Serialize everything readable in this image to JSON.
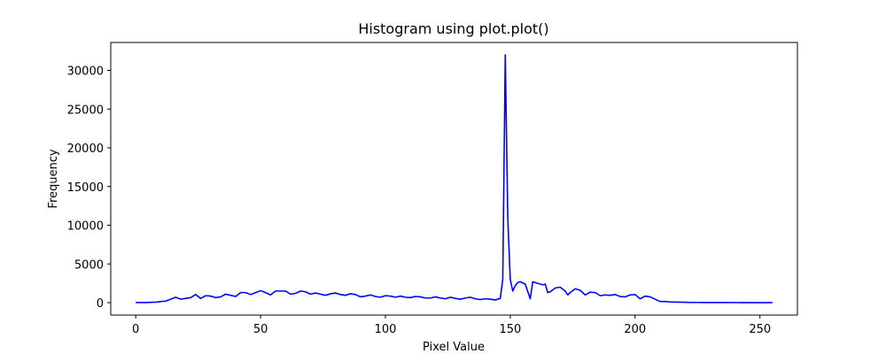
{
  "chart_data": {
    "type": "line",
    "title": "Histogram using plot.plot()",
    "xlabel": "Pixel Value",
    "ylabel": "Frequency",
    "xlim": [
      -10,
      265
    ],
    "ylim": [
      -1600,
      33600
    ],
    "xticks": [
      0,
      50,
      100,
      150,
      200,
      250
    ],
    "yticks": [
      0,
      5000,
      10000,
      15000,
      20000,
      25000,
      30000
    ],
    "grid": false,
    "line_color": "#0000ff",
    "series": [
      {
        "points": [
          [
            0,
            20
          ],
          [
            4,
            20
          ],
          [
            8,
            60
          ],
          [
            10,
            150
          ],
          [
            12,
            200
          ],
          [
            14,
            450
          ],
          [
            16,
            700
          ],
          [
            18,
            450
          ],
          [
            20,
            550
          ],
          [
            22,
            650
          ],
          [
            24,
            1050
          ],
          [
            26,
            550
          ],
          [
            28,
            900
          ],
          [
            30,
            850
          ],
          [
            32,
            650
          ],
          [
            34,
            750
          ],
          [
            36,
            1100
          ],
          [
            38,
            950
          ],
          [
            40,
            800
          ],
          [
            42,
            1300
          ],
          [
            44,
            1300
          ],
          [
            46,
            1050
          ],
          [
            48,
            1300
          ],
          [
            50,
            1550
          ],
          [
            52,
            1300
          ],
          [
            54,
            1000
          ],
          [
            56,
            1500
          ],
          [
            58,
            1500
          ],
          [
            60,
            1500
          ],
          [
            62,
            1100
          ],
          [
            64,
            1200
          ],
          [
            66,
            1500
          ],
          [
            68,
            1400
          ],
          [
            70,
            1100
          ],
          [
            72,
            1250
          ],
          [
            74,
            1100
          ],
          [
            76,
            950
          ],
          [
            78,
            1150
          ],
          [
            80,
            1250
          ],
          [
            82,
            1050
          ],
          [
            84,
            950
          ],
          [
            86,
            1150
          ],
          [
            88,
            1050
          ],
          [
            90,
            750
          ],
          [
            92,
            850
          ],
          [
            94,
            1000
          ],
          [
            96,
            800
          ],
          [
            98,
            700
          ],
          [
            100,
            900
          ],
          [
            102,
            850
          ],
          [
            104,
            700
          ],
          [
            106,
            850
          ],
          [
            108,
            700
          ],
          [
            110,
            650
          ],
          [
            112,
            800
          ],
          [
            114,
            750
          ],
          [
            116,
            600
          ],
          [
            118,
            600
          ],
          [
            120,
            750
          ],
          [
            122,
            600
          ],
          [
            124,
            500
          ],
          [
            126,
            700
          ],
          [
            128,
            550
          ],
          [
            130,
            450
          ],
          [
            132,
            600
          ],
          [
            134,
            700
          ],
          [
            136,
            500
          ],
          [
            138,
            400
          ],
          [
            140,
            500
          ],
          [
            142,
            450
          ],
          [
            144,
            350
          ],
          [
            146,
            550
          ],
          [
            147,
            3000
          ],
          [
            148,
            32000
          ],
          [
            149,
            11000
          ],
          [
            150,
            3000
          ],
          [
            151,
            1500
          ],
          [
            152,
            2200
          ],
          [
            153,
            2600
          ],
          [
            154,
            2700
          ],
          [
            156,
            2400
          ],
          [
            158,
            500
          ],
          [
            159,
            2700
          ],
          [
            161,
            2500
          ],
          [
            163,
            2300
          ],
          [
            164,
            2400
          ],
          [
            165,
            1300
          ],
          [
            166,
            1400
          ],
          [
            168,
            1900
          ],
          [
            170,
            2000
          ],
          [
            172,
            1500
          ],
          [
            173,
            1000
          ],
          [
            174,
            1300
          ],
          [
            176,
            1800
          ],
          [
            178,
            1600
          ],
          [
            180,
            1000
          ],
          [
            182,
            1350
          ],
          [
            184,
            1300
          ],
          [
            186,
            900
          ],
          [
            188,
            1000
          ],
          [
            190,
            950
          ],
          [
            192,
            1050
          ],
          [
            194,
            800
          ],
          [
            196,
            750
          ],
          [
            198,
            1000
          ],
          [
            200,
            1050
          ],
          [
            202,
            500
          ],
          [
            204,
            850
          ],
          [
            206,
            750
          ],
          [
            208,
            450
          ],
          [
            210,
            150
          ],
          [
            212,
            150
          ],
          [
            214,
            100
          ],
          [
            216,
            80
          ],
          [
            218,
            60
          ],
          [
            220,
            50
          ],
          [
            222,
            30
          ],
          [
            224,
            30
          ],
          [
            226,
            30
          ],
          [
            228,
            20
          ],
          [
            232,
            20
          ],
          [
            236,
            20
          ],
          [
            240,
            15
          ],
          [
            244,
            10
          ],
          [
            248,
            10
          ],
          [
            252,
            10
          ],
          [
            255,
            10
          ]
        ]
      }
    ]
  }
}
